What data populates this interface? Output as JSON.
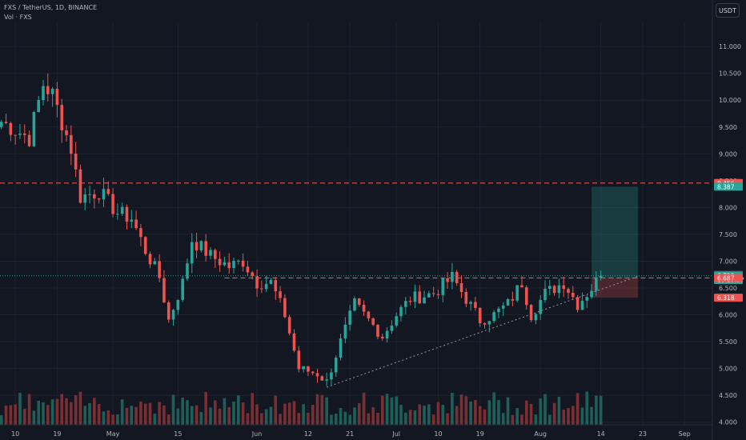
{
  "header": {
    "symbol_line": "FXS / TetherUS, 1D, BINANCE",
    "volume_line": "Vol · FXS"
  },
  "currency_button": "USDT",
  "colors": {
    "up": "#26a69a",
    "down": "#ef5350",
    "background": "#131722",
    "grid": "#1e2230",
    "text": "#b2b5be",
    "vol_up": "#1f5f5a",
    "vol_down": "#7a2f33"
  },
  "chart_data": {
    "type": "candlestick",
    "y_axis": {
      "ticks": [
        "11.000",
        "10.500",
        "10.000",
        "9.500",
        "9.000",
        "8.500",
        "8.000",
        "7.500",
        "7.000",
        "6.500",
        "6.000",
        "5.500",
        "5.000",
        "4.500",
        "4.000"
      ],
      "range": [
        3.95,
        11.45
      ]
    },
    "x_axis": {
      "ticks": [
        {
          "label": "10",
          "day": 0
        },
        {
          "label": "19",
          "day": 9
        },
        {
          "label": "May",
          "day": 21
        },
        {
          "label": "15",
          "day": 35
        },
        {
          "label": "Jun",
          "day": 52
        },
        {
          "label": "12",
          "day": 63
        },
        {
          "label": "21",
          "day": 72
        },
        {
          "label": "Jul",
          "day": 82
        },
        {
          "label": "10",
          "day": 91
        },
        {
          "label": "19",
          "day": 100
        },
        {
          "label": "Aug",
          "day": 113
        },
        {
          "label": "14",
          "day": 126
        },
        {
          "label": "23",
          "day": 135
        },
        {
          "label": "Sep",
          "day": 144
        }
      ],
      "range": [
        -3.3,
        150
      ]
    },
    "key_points": [
      {
        "day": -3,
        "price": 9.6
      },
      {
        "day": 3,
        "price": 9.3
      },
      {
        "day": 6,
        "price": 10.3
      },
      {
        "day": 8,
        "price": 10.1
      },
      {
        "day": 12,
        "price": 9.1
      },
      {
        "day": 14,
        "price": 8.2
      },
      {
        "day": 18,
        "price": 8.3
      },
      {
        "day": 22,
        "price": 7.9
      },
      {
        "day": 25,
        "price": 7.8
      },
      {
        "day": 28,
        "price": 7.2
      },
      {
        "day": 31,
        "price": 6.7
      },
      {
        "day": 33,
        "price": 5.9
      },
      {
        "day": 36,
        "price": 6.6
      },
      {
        "day": 38,
        "price": 7.4
      },
      {
        "day": 42,
        "price": 7.1
      },
      {
        "day": 46,
        "price": 6.9
      },
      {
        "day": 49,
        "price": 7.0
      },
      {
        "day": 52,
        "price": 6.6
      },
      {
        "day": 55,
        "price": 6.6
      },
      {
        "day": 58,
        "price": 6.0
      },
      {
        "day": 61,
        "price": 5.0
      },
      {
        "day": 65,
        "price": 4.9
      },
      {
        "day": 67,
        "price": 4.75
      },
      {
        "day": 70,
        "price": 5.5
      },
      {
        "day": 73,
        "price": 6.2
      },
      {
        "day": 76,
        "price": 5.9
      },
      {
        "day": 79,
        "price": 5.6
      },
      {
        "day": 82,
        "price": 6.0
      },
      {
        "day": 85,
        "price": 6.3
      },
      {
        "day": 90,
        "price": 6.4
      },
      {
        "day": 94,
        "price": 6.7
      },
      {
        "day": 97,
        "price": 6.3
      },
      {
        "day": 100,
        "price": 5.9
      },
      {
        "day": 103,
        "price": 6.0
      },
      {
        "day": 106,
        "price": 6.2
      },
      {
        "day": 109,
        "price": 6.6
      },
      {
        "day": 111,
        "price": 6.0
      },
      {
        "day": 114,
        "price": 6.4
      },
      {
        "day": 118,
        "price": 6.6
      },
      {
        "day": 121,
        "price": 6.2
      },
      {
        "day": 124,
        "price": 6.5
      },
      {
        "day": 126,
        "price": 6.73
      }
    ],
    "horizontal_lines": [
      {
        "price": 8.456,
        "style": "dashed",
        "color": "#ef5350"
      },
      {
        "price": 6.687,
        "style": "dashed",
        "color": "#ef5350",
        "start_day": 45
      }
    ],
    "trendline": {
      "from": {
        "day": 67,
        "price": 4.65
      },
      "to": {
        "day": 134,
        "price": 6.72
      }
    },
    "position": {
      "start_day": 124,
      "end_day": 134,
      "entry": 6.687,
      "target": 8.387,
      "stop": 6.318
    },
    "price_labels": [
      {
        "text": "8.456",
        "price": 8.456,
        "bg": "#ef5350"
      },
      {
        "text": "8.387",
        "price": 8.387,
        "bg": "#26a69a"
      },
      {
        "text": "6.744",
        "price": 6.744,
        "bg": "#5d606b"
      },
      {
        "text": "6.728",
        "price": 6.728,
        "bg": "#26a69a"
      },
      {
        "text": "10:29:37",
        "price": 6.648,
        "bg": "#26a69a"
      },
      {
        "text": "6.687",
        "price": 6.687,
        "bg": "#ef5350"
      },
      {
        "text": "6.318",
        "price": 6.318,
        "bg": "#ef5350"
      }
    ],
    "last_price": 6.728,
    "grid": true
  }
}
